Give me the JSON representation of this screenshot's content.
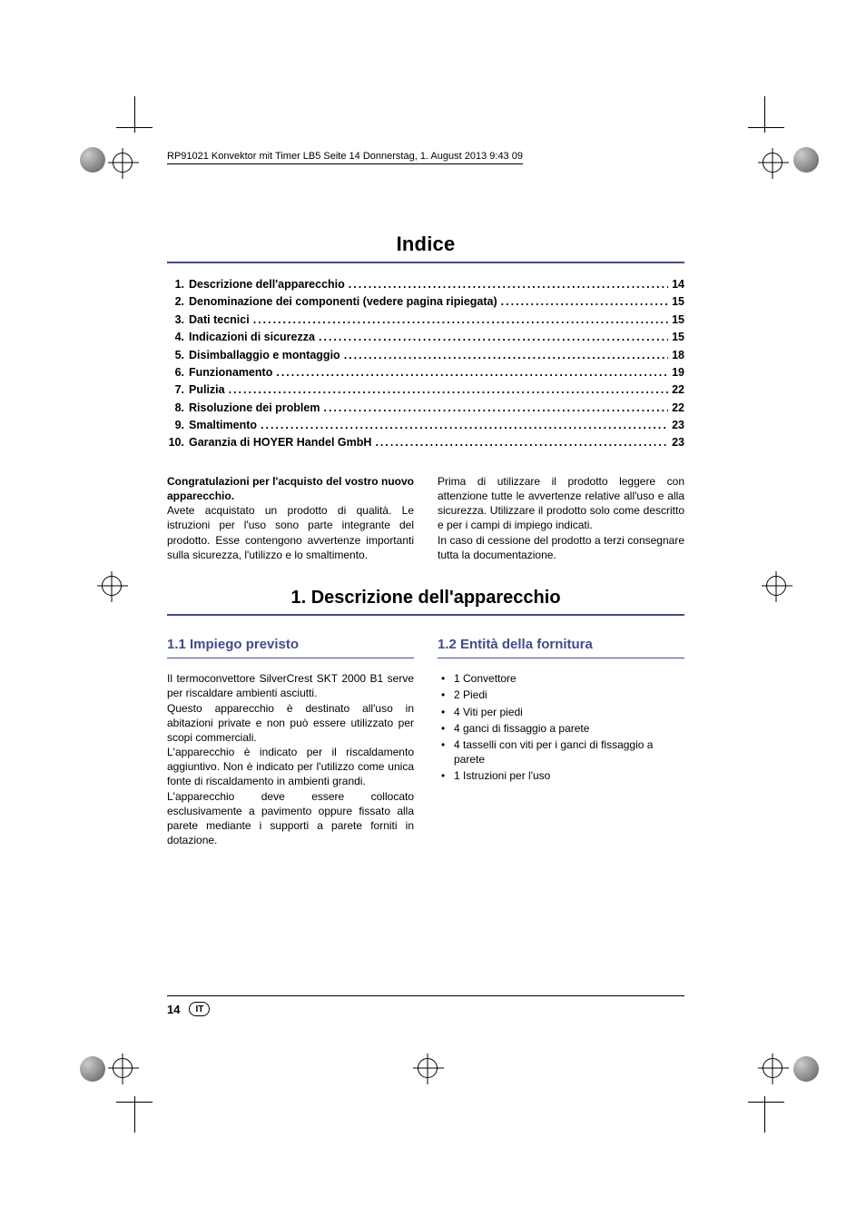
{
  "colors": {
    "accent": "#424c8a",
    "text": "#000000",
    "background": "#ffffff"
  },
  "running_head": "RP91021 Konvektor mit Timer LB5  Seite 14  Donnerstag, 1. August 2013  9:43 09",
  "title_toc": "Indice",
  "toc": [
    {
      "n": "1.",
      "label": "Descrizione dell'apparecchio",
      "page": "14"
    },
    {
      "n": "2.",
      "label": "Denominazione dei componenti (vedere pagina ripiegata)",
      "page": "15"
    },
    {
      "n": "3.",
      "label": "Dati tecnici",
      "page": "15"
    },
    {
      "n": "4.",
      "label": "Indicazioni di sicurezza",
      "page": "15"
    },
    {
      "n": "5.",
      "label": "Disimballaggio e montaggio",
      "page": "18"
    },
    {
      "n": "6.",
      "label": "Funzionamento",
      "page": "19"
    },
    {
      "n": "7.",
      "label": "Pulizia",
      "page": "22"
    },
    {
      "n": "8.",
      "label": "Risoluzione dei problem",
      "page": "22"
    },
    {
      "n": "9.",
      "label": "Smaltimento",
      "page": "23"
    },
    {
      "n": "10.",
      "label": "Garanzia di HOYER Handel GmbH",
      "page": "23"
    }
  ],
  "intro": {
    "left": {
      "lead": "Congratulazioni per l'acquisto del vostro nuovo apparecchio.",
      "body": "Avete acquistato un prodotto di qualità. Le istruzioni per l'uso sono parte integrante del prodotto. Esse contengono avvertenze importanti sulla sicurezza, l'utilizzo e lo smaltimento."
    },
    "right": {
      "p1": "Prima di utilizzare il prodotto leggere con attenzione tutte le avvertenze relative all'uso e alla sicurezza. Utilizzare il prodotto solo come descritto e per i campi di impiego indicati.",
      "p2": "In caso di cessione del prodotto a terzi consegnare tutta la documentazione."
    }
  },
  "h1": "1. Descrizione dell'apparecchio",
  "col_left": {
    "heading": "1.1 Impiego previsto",
    "p1": "Il termoconvettore SilverCrest SKT 2000 B1 serve per riscaldare ambienti asciutti.",
    "p2": "Questo apparecchio è destinato all'uso in abitazioni private e non può essere utilizzato per scopi commerciali.",
    "p3": "L'apparecchio è indicato per il riscaldamento aggiuntivo. Non è indicato per l'utilizzo come unica fonte di riscaldamento in ambienti grandi.",
    "p4": "L'apparecchio deve essere collocato esclusivamente a pavimento oppure fissato alla parete mediante i supporti a parete forniti in dotazione."
  },
  "col_right": {
    "heading": "1.2 Entità della fornitura",
    "items": [
      "1 Convettore",
      "2 Piedi",
      "4 Viti per piedi",
      "4 ganci di fissaggio a parete",
      "4 tasselli con viti per i ganci di fissaggio a parete",
      "1 Istruzioni per l'uso"
    ]
  },
  "footer": {
    "page_number": "14",
    "lang": "IT"
  }
}
